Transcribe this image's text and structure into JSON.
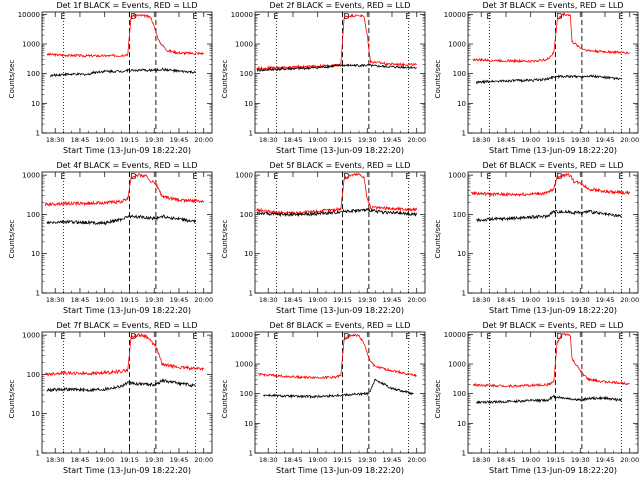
{
  "figure": {
    "x_axis_label": "Start Time (13-Jun-09 18:22:20)",
    "y_axis_label": "Counts/sec"
  },
  "chart_data": [
    {
      "type": "line",
      "title": "Det 1f BLACK = Events, RED = LLD",
      "ylog": true,
      "yticks": [
        "1",
        "10",
        "100",
        "1000",
        "10000"
      ],
      "ylim": [
        1,
        12000
      ],
      "xticks": [
        "18:30",
        "18:45",
        "19:00",
        "19:15",
        "19:30",
        "19:45",
        "20:00"
      ],
      "xlim": [
        "18:22",
        "20:05"
      ],
      "markers": {
        "labels": [
          "E",
          "D",
          "E"
        ],
        "dotted": [
          "18:35",
          "19:55"
        ],
        "dashed": [
          "19:15",
          "19:31"
        ]
      },
      "series": [
        {
          "color": "#ff0000",
          "x": [
            "18:25",
            "18:35",
            "18:50",
            "19:00",
            "19:10",
            "19:14",
            "19:16",
            "19:20",
            "19:24",
            "19:28",
            "19:33",
            "19:38",
            "19:45",
            "20:00"
          ],
          "y": [
            450,
            420,
            400,
            400,
            410,
            450,
            9000,
            9200,
            9000,
            8000,
            1200,
            600,
            500,
            480
          ]
        },
        {
          "color": "#000000",
          "x": [
            "18:27",
            "18:35",
            "18:50",
            "18:53",
            "19:00",
            "19:10",
            "19:14",
            "19:31",
            "19:35",
            "19:45",
            "19:55"
          ],
          "y": [
            85,
            95,
            95,
            110,
            120,
            120,
            130,
            130,
            140,
            120,
            110
          ]
        }
      ]
    },
    {
      "type": "line",
      "title": "Det 2f BLACK = Events, RED = LLD",
      "ylog": true,
      "yticks": [
        "1",
        "10",
        "100",
        "1000",
        "10000"
      ],
      "ylim": [
        1,
        12000
      ],
      "xticks": [
        "18:30",
        "18:45",
        "19:00",
        "19:15",
        "19:30",
        "19:45",
        "20:00"
      ],
      "xlim": [
        "18:22",
        "20:05"
      ],
      "markers": {
        "labels": [
          "E",
          "D",
          "E"
        ],
        "dotted": [
          "18:35",
          "19:55"
        ],
        "dashed": [
          "19:15",
          "19:31"
        ]
      },
      "series": [
        {
          "color": "#ff0000",
          "x": [
            "18:23",
            "18:35",
            "18:50",
            "19:00",
            "19:10",
            "19:14",
            "19:16",
            "19:20",
            "19:25",
            "19:28",
            "19:30",
            "19:32",
            "19:45",
            "20:00"
          ],
          "y": [
            150,
            160,
            170,
            180,
            190,
            200,
            8000,
            9000,
            9200,
            8500,
            2000,
            250,
            210,
            200
          ]
        },
        {
          "color": "#000000",
          "x": [
            "18:23",
            "18:35",
            "18:50",
            "19:00",
            "19:10",
            "19:14",
            "19:31",
            "19:35",
            "19:45",
            "20:00"
          ],
          "y": [
            130,
            140,
            150,
            160,
            180,
            190,
            190,
            180,
            170,
            160
          ]
        }
      ]
    },
    {
      "type": "line",
      "title": "Det 3f BLACK = Events, RED = LLD",
      "ylog": true,
      "yticks": [
        "1",
        "10",
        "100",
        "1000",
        "10000"
      ],
      "ylim": [
        1,
        12000
      ],
      "xticks": [
        "18:30",
        "18:45",
        "19:00",
        "19:15",
        "19:30",
        "19:45",
        "20:00"
      ],
      "xlim": [
        "18:22",
        "20:05"
      ],
      "markers": {
        "labels": [
          "E",
          "D",
          "E"
        ],
        "dotted": [
          "18:35",
          "19:55"
        ],
        "dashed": [
          "19:15",
          "19:31"
        ]
      },
      "series": [
        {
          "color": "#ff0000",
          "x": [
            "18:25",
            "18:35",
            "18:50",
            "19:00",
            "19:10",
            "19:14",
            "19:16",
            "19:19",
            "19:24",
            "19:25",
            "19:31",
            "19:35",
            "19:45",
            "20:00"
          ],
          "y": [
            300,
            280,
            270,
            260,
            300,
            500,
            6000,
            10000,
            9500,
            1200,
            700,
            600,
            550,
            500
          ]
        },
        {
          "color": "#000000",
          "x": [
            "18:27",
            "18:35",
            "18:50",
            "19:00",
            "19:10",
            "19:14",
            "19:31",
            "19:35",
            "19:45",
            "19:55"
          ],
          "y": [
            50,
            55,
            58,
            60,
            65,
            80,
            80,
            85,
            75,
            65
          ]
        }
      ]
    },
    {
      "type": "line",
      "title": "Det 4f BLACK = Events, RED = LLD",
      "ylog": true,
      "yticks": [
        "1",
        "10",
        "100",
        "1000"
      ],
      "ylim": [
        1,
        1200
      ],
      "xticks": [
        "18:30",
        "18:45",
        "19:00",
        "19:15",
        "19:30",
        "19:45",
        "20:00"
      ],
      "xlim": [
        "18:22",
        "20:05"
      ],
      "markers": {
        "labels": [
          "E",
          "D",
          "E"
        ],
        "dotted": [
          "18:35",
          "19:55"
        ],
        "dashed": [
          "19:15",
          "19:31"
        ]
      },
      "series": [
        {
          "color": "#ff0000",
          "x": [
            "18:24",
            "18:35",
            "18:50",
            "19:00",
            "19:10",
            "19:14",
            "19:16",
            "19:20",
            "19:25",
            "19:28",
            "19:31",
            "19:35",
            "19:45",
            "20:00"
          ],
          "y": [
            180,
            190,
            190,
            200,
            210,
            250,
            900,
            1000,
            950,
            700,
            600,
            280,
            230,
            220
          ]
        },
        {
          "color": "#000000",
          "x": [
            "18:25",
            "18:35",
            "18:50",
            "19:00",
            "19:10",
            "19:14",
            "19:31",
            "19:35",
            "19:45",
            "19:55"
          ],
          "y": [
            60,
            65,
            62,
            60,
            75,
            90,
            80,
            90,
            75,
            65
          ]
        }
      ]
    },
    {
      "type": "line",
      "title": "Det 5f BLACK = Events, RED = LLD",
      "ylog": true,
      "yticks": [
        "1",
        "10",
        "100",
        "1000"
      ],
      "ylim": [
        1,
        1200
      ],
      "xticks": [
        "18:30",
        "18:45",
        "19:00",
        "19:15",
        "19:30",
        "19:45",
        "20:00"
      ],
      "xlim": [
        "18:22",
        "20:05"
      ],
      "markers": {
        "labels": [
          "E",
          "D",
          "E"
        ],
        "dotted": [
          "18:35",
          "19:55"
        ],
        "dashed": [
          "19:15",
          "19:31"
        ]
      },
      "series": [
        {
          "color": "#ff0000",
          "x": [
            "18:23",
            "18:35",
            "18:50",
            "19:00",
            "19:10",
            "19:14",
            "19:16",
            "19:20",
            "19:25",
            "19:28",
            "19:30",
            "19:32",
            "19:45",
            "20:00"
          ],
          "y": [
            130,
            110,
            110,
            120,
            130,
            140,
            800,
            1000,
            1050,
            900,
            250,
            150,
            140,
            130
          ]
        },
        {
          "color": "#000000",
          "x": [
            "18:23",
            "18:35",
            "18:50",
            "19:00",
            "19:10",
            "19:14",
            "19:31",
            "19:35",
            "19:45",
            "20:00"
          ],
          "y": [
            110,
            100,
            100,
            105,
            110,
            120,
            130,
            120,
            110,
            100
          ]
        }
      ]
    },
    {
      "type": "line",
      "title": "Det 6f BLACK = Events, RED = LLD",
      "ylog": true,
      "yticks": [
        "1",
        "10",
        "100",
        "1000"
      ],
      "ylim": [
        1,
        1200
      ],
      "xticks": [
        "18:30",
        "18:45",
        "19:00",
        "19:15",
        "19:30",
        "19:45",
        "20:00"
      ],
      "xlim": [
        "18:22",
        "20:05"
      ],
      "markers": {
        "labels": [
          "E",
          "D",
          "E"
        ],
        "dotted": [
          "18:35",
          "19:55"
        ],
        "dashed": [
          "19:15",
          "19:31"
        ]
      },
      "series": [
        {
          "color": "#ff0000",
          "x": [
            "18:24",
            "18:35",
            "18:50",
            "19:00",
            "19:10",
            "19:14",
            "19:16",
            "19:20",
            "19:24",
            "19:26",
            "19:31",
            "19:35",
            "19:45",
            "20:00"
          ],
          "y": [
            350,
            330,
            320,
            330,
            350,
            450,
            900,
            1000,
            1000,
            700,
            600,
            450,
            380,
            350
          ]
        },
        {
          "color": "#000000",
          "x": [
            "18:27",
            "18:35",
            "18:50",
            "19:00",
            "19:10",
            "19:14",
            "19:31",
            "19:35",
            "19:45",
            "19:55"
          ],
          "y": [
            70,
            75,
            80,
            85,
            90,
            120,
            110,
            120,
            100,
            90
          ]
        }
      ]
    },
    {
      "type": "line",
      "title": "Det 7f BLACK = Events, RED = LLD",
      "ylog": true,
      "yticks": [
        "1",
        "10",
        "100",
        "1000"
      ],
      "ylim": [
        1,
        1200
      ],
      "xticks": [
        "18:30",
        "18:45",
        "19:00",
        "19:15",
        "19:30",
        "19:45",
        "20:00"
      ],
      "xlim": [
        "18:22",
        "20:05"
      ],
      "markers": {
        "labels": [
          "E",
          "D",
          "E"
        ],
        "dotted": [
          "18:35",
          "19:55"
        ],
        "dashed": [
          "19:15",
          "19:31"
        ]
      },
      "series": [
        {
          "color": "#ff0000",
          "x": [
            "18:24",
            "18:35",
            "18:50",
            "19:00",
            "19:10",
            "19:14",
            "19:16",
            "19:20",
            "19:25",
            "19:28",
            "19:31",
            "19:35",
            "19:45",
            "20:00"
          ],
          "y": [
            100,
            110,
            105,
            110,
            120,
            130,
            900,
            1000,
            950,
            700,
            500,
            180,
            150,
            140
          ]
        },
        {
          "color": "#000000",
          "x": [
            "18:25",
            "18:35",
            "18:50",
            "19:00",
            "19:10",
            "19:14",
            "19:31",
            "19:35",
            "19:45",
            "19:55"
          ],
          "y": [
            40,
            42,
            40,
            42,
            50,
            60,
            55,
            70,
            60,
            50
          ]
        }
      ]
    },
    {
      "type": "line",
      "title": "Det 8f BLACK = Events, RED = LLD",
      "ylog": true,
      "yticks": [
        "1",
        "10",
        "100",
        "1000",
        "10000"
      ],
      "ylim": [
        1,
        12000
      ],
      "xticks": [
        "18:30",
        "18:45",
        "19:00",
        "19:15",
        "19:30",
        "19:45",
        "20:00"
      ],
      "xlim": [
        "18:22",
        "20:05"
      ],
      "markers": {
        "labels": [
          "E",
          "D",
          "E"
        ],
        "dotted": [
          "18:35",
          "19:55"
        ],
        "dashed": [
          "19:15",
          "19:31"
        ]
      },
      "series": [
        {
          "color": "#ff0000",
          "x": [
            "18:24",
            "18:35",
            "18:50",
            "19:00",
            "19:10",
            "19:14",
            "19:16",
            "19:20",
            "19:25",
            "19:28",
            "19:31",
            "19:35",
            "19:45",
            "20:00"
          ],
          "y": [
            450,
            400,
            360,
            350,
            360,
            400,
            7000,
            9500,
            9000,
            5000,
            1500,
            800,
            600,
            400
          ]
        },
        {
          "color": "#000000",
          "x": [
            "18:27",
            "18:35",
            "18:50",
            "19:00",
            "19:10",
            "19:14",
            "19:31",
            "19:35",
            "19:45",
            "19:58"
          ],
          "y": [
            90,
            85,
            80,
            80,
            85,
            90,
            100,
            300,
            150,
            100
          ]
        }
      ]
    },
    {
      "type": "line",
      "title": "Det 9f BLACK = Events, RED = LLD",
      "ylog": true,
      "yticks": [
        "1",
        "10",
        "100",
        "1000",
        "10000"
      ],
      "ylim": [
        1,
        12000
      ],
      "xticks": [
        "18:30",
        "18:45",
        "19:00",
        "19:15",
        "19:30",
        "19:45",
        "20:00"
      ],
      "xlim": [
        "18:22",
        "20:05"
      ],
      "markers": {
        "labels": [
          "E",
          "D",
          "E"
        ],
        "dotted": [
          "18:35",
          "19:55"
        ],
        "dashed": [
          "19:15",
          "19:31"
        ]
      },
      "series": [
        {
          "color": "#ff0000",
          "x": [
            "18:25",
            "18:35",
            "18:50",
            "19:00",
            "19:10",
            "19:14",
            "19:16",
            "19:19",
            "19:24",
            "19:25",
            "19:31",
            "19:35",
            "19:45",
            "20:00"
          ],
          "y": [
            200,
            190,
            180,
            190,
            200,
            250,
            5000,
            10000,
            9500,
            1500,
            500,
            300,
            250,
            220
          ]
        },
        {
          "color": "#000000",
          "x": [
            "18:27",
            "18:35",
            "18:50",
            "19:00",
            "19:10",
            "19:14",
            "19:31",
            "19:35",
            "19:45",
            "19:55"
          ],
          "y": [
            50,
            52,
            55,
            58,
            60,
            80,
            60,
            70,
            70,
            60
          ]
        }
      ]
    }
  ]
}
